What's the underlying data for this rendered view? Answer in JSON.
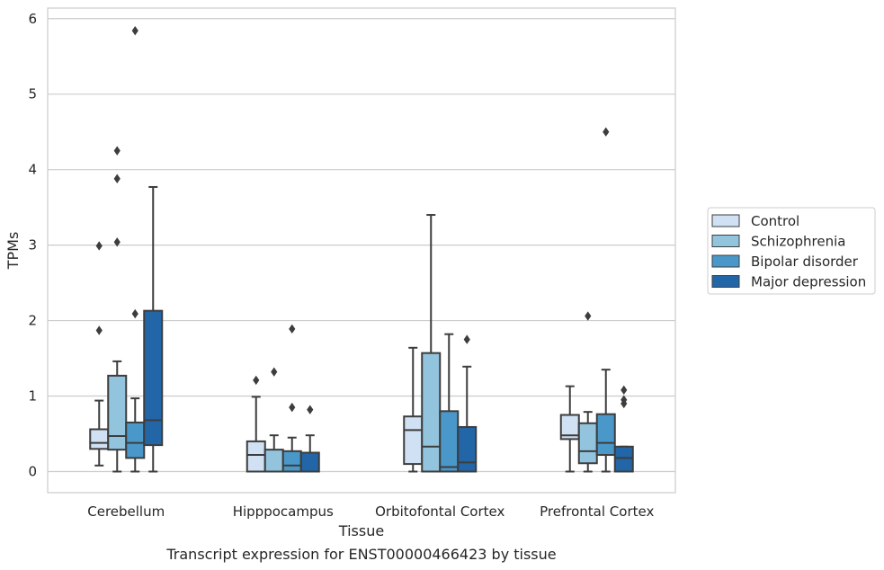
{
  "chart_data": {
    "type": "box",
    "title": "",
    "caption": "Transcript expression for ENST00000466423 by tissue",
    "xlabel": "Tissue",
    "ylabel": "TPMs",
    "ylim": [
      -0.28,
      6.14
    ],
    "yticks": [
      0,
      1,
      2,
      3,
      4,
      5,
      6
    ],
    "grid": "horizontal",
    "legend_position": "right",
    "categories": [
      "Cerebellum",
      "Hipppocampus",
      "Orbitofontal Cortex",
      "Prefrontal Cortex"
    ],
    "series": [
      {
        "name": "Control",
        "color": "#cfe1f2",
        "boxes": [
          {
            "whislo": 0.08,
            "q1": 0.3,
            "med": 0.38,
            "q3": 0.56,
            "whishi": 0.94,
            "fliers": [
              1.87,
              2.99
            ]
          },
          {
            "whislo": 0.0,
            "q1": 0.0,
            "med": 0.22,
            "q3": 0.4,
            "whishi": 0.99,
            "fliers": [
              1.21
            ]
          },
          {
            "whislo": 0.0,
            "q1": 0.1,
            "med": 0.55,
            "q3": 0.73,
            "whishi": 1.64,
            "fliers": []
          },
          {
            "whislo": 0.0,
            "q1": 0.43,
            "med": 0.48,
            "q3": 0.75,
            "whishi": 1.13,
            "fliers": []
          }
        ]
      },
      {
        "name": "Schizophrenia",
        "color": "#93c4de",
        "boxes": [
          {
            "whislo": 0.0,
            "q1": 0.29,
            "med": 0.47,
            "q3": 1.27,
            "whishi": 1.46,
            "fliers": [
              3.04,
              3.88,
              4.25
            ]
          },
          {
            "whislo": 0.0,
            "q1": 0.0,
            "med": 0.0,
            "q3": 0.29,
            "whishi": 0.48,
            "fliers": [
              1.32
            ]
          },
          {
            "whislo": 0.0,
            "q1": 0.0,
            "med": 0.33,
            "q3": 1.57,
            "whishi": 3.4,
            "fliers": []
          },
          {
            "whislo": 0.0,
            "q1": 0.11,
            "med": 0.27,
            "q3": 0.64,
            "whishi": 0.79,
            "fliers": [
              2.06
            ]
          }
        ]
      },
      {
        "name": "Bipolar disorder",
        "color": "#4a98c9",
        "boxes": [
          {
            "whislo": 0.0,
            "q1": 0.18,
            "med": 0.38,
            "q3": 0.65,
            "whishi": 0.97,
            "fliers": [
              2.09,
              5.84
            ]
          },
          {
            "whislo": 0.0,
            "q1": 0.0,
            "med": 0.08,
            "q3": 0.27,
            "whishi": 0.45,
            "fliers": [
              0.85,
              1.89
            ]
          },
          {
            "whislo": 0.0,
            "q1": 0.0,
            "med": 0.06,
            "q3": 0.8,
            "whishi": 1.82,
            "fliers": []
          },
          {
            "whislo": 0.0,
            "q1": 0.22,
            "med": 0.38,
            "q3": 0.76,
            "whishi": 1.35,
            "fliers": [
              4.5
            ]
          }
        ]
      },
      {
        "name": "Major depression",
        "color": "#2266a8",
        "boxes": [
          {
            "whislo": 0.0,
            "q1": 0.35,
            "med": 0.68,
            "q3": 2.13,
            "whishi": 3.77,
            "fliers": []
          },
          {
            "whislo": 0.0,
            "q1": 0.0,
            "med": 0.0,
            "q3": 0.25,
            "whishi": 0.48,
            "fliers": [
              0.82
            ]
          },
          {
            "whislo": 0.0,
            "q1": 0.0,
            "med": 0.12,
            "q3": 0.59,
            "whishi": 1.39,
            "fliers": [
              1.75
            ]
          },
          {
            "whislo": 0.0,
            "q1": 0.0,
            "med": 0.18,
            "q3": 0.33,
            "whishi": 0.33,
            "fliers": [
              0.9,
              0.95,
              1.08
            ]
          }
        ]
      }
    ]
  }
}
